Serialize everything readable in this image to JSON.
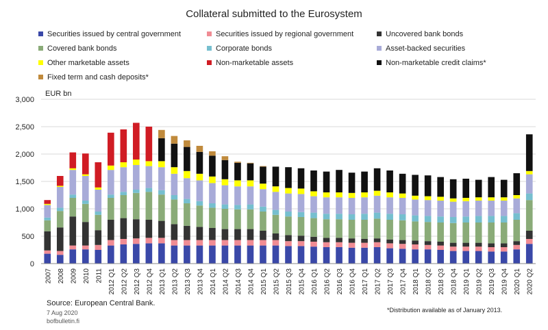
{
  "chart_data": {
    "type": "bar",
    "stacked": true,
    "title": "Collateral submitted to the Eurosystem",
    "ylabel": "EUR bn",
    "ylim": [
      0,
      3000
    ],
    "yticks": [
      "0",
      "500",
      "1,000",
      "1,500",
      "2,000",
      "2,500",
      "3,000"
    ],
    "categories": [
      "2007",
      "2008",
      "2009",
      "2010",
      "2011",
      "2012 Q1",
      "2012 Q2",
      "2012 Q3",
      "2012 Q4",
      "2013 Q1",
      "2013 Q2",
      "2013 Q3",
      "2013 Q4",
      "2014 Q1",
      "2014 Q2",
      "2014 Q3",
      "2014 Q4",
      "2015 Q1",
      "2015 Q2",
      "2015 Q3",
      "2015 Q4",
      "2016 Q1",
      "2016 Q2",
      "2016 Q3",
      "2016 Q4",
      "2017 Q1",
      "2017 Q2",
      "2017 Q3",
      "2017 Q4",
      "2018 Q1",
      "2018 Q2",
      "2018 Q3",
      "2018 Q4",
      "2019 Q1",
      "2019 Q2",
      "2019 Q3",
      "2019 Q4",
      "2020 Q1",
      "2020 Q2"
    ],
    "series": [
      {
        "name": "Securities issued by central government",
        "color": "#3a48a8",
        "values": [
          180,
          160,
          260,
          260,
          250,
          330,
          350,
          360,
          370,
          370,
          330,
          330,
          330,
          330,
          330,
          330,
          330,
          330,
          330,
          320,
          320,
          310,
          300,
          300,
          290,
          290,
          300,
          280,
          270,
          260,
          260,
          250,
          230,
          230,
          230,
          220,
          220,
          260,
          360
        ]
      },
      {
        "name": "Securities issued by regional government",
        "color": "#f08c94",
        "values": [
          60,
          70,
          70,
          70,
          90,
          100,
          100,
          100,
          100,
          100,
          100,
          100,
          100,
          100,
          100,
          100,
          100,
          100,
          100,
          90,
          90,
          90,
          90,
          90,
          90,
          90,
          90,
          90,
          90,
          90,
          80,
          80,
          80,
          80,
          80,
          80,
          80,
          80,
          90
        ]
      },
      {
        "name": "Uncovered bank bonds",
        "color": "#333333",
        "values": [
          350,
          430,
          530,
          430,
          270,
          370,
          380,
          350,
          330,
          310,
          290,
          260,
          240,
          220,
          200,
          200,
          200,
          170,
          120,
          110,
          100,
          90,
          80,
          80,
          80,
          70,
          70,
          70,
          70,
          70,
          70,
          70,
          70,
          70,
          70,
          70,
          70,
          70,
          150
        ]
      },
      {
        "name": "Covered bank bonds",
        "color": "#8aab78",
        "values": [
          200,
          300,
          340,
          330,
          280,
          400,
          420,
          480,
          510,
          480,
          450,
          410,
          390,
          370,
          370,
          360,
          360,
          350,
          340,
          340,
          340,
          340,
          340,
          340,
          340,
          350,
          360,
          360,
          360,
          350,
          350,
          350,
          360,
          370,
          370,
          380,
          380,
          390,
          560
        ]
      },
      {
        "name": "Corporate bonds",
        "color": "#76bfcf",
        "values": [
          50,
          60,
          60,
          60,
          60,
          60,
          60,
          60,
          70,
          80,
          80,
          80,
          80,
          80,
          80,
          80,
          90,
          90,
          90,
          90,
          90,
          100,
          100,
          100,
          100,
          110,
          110,
          110,
          110,
          110,
          110,
          110,
          110,
          110,
          120,
          120,
          120,
          120,
          120
        ]
      },
      {
        "name": "Asset-backed securities",
        "color": "#a8abd8",
        "values": [
          230,
          380,
          450,
          450,
          400,
          450,
          450,
          450,
          400,
          420,
          390,
          380,
          380,
          370,
          350,
          340,
          330,
          320,
          330,
          330,
          330,
          300,
          300,
          300,
          300,
          300,
          310,
          300,
          300,
          290,
          290,
          290,
          280,
          280,
          280,
          280,
          280,
          270,
          350
        ]
      },
      {
        "name": "Other marketable assets",
        "color": "#ffff00",
        "values": [
          20,
          20,
          30,
          30,
          40,
          80,
          90,
          100,
          90,
          110,
          120,
          130,
          120,
          120,
          110,
          110,
          110,
          100,
          100,
          100,
          100,
          90,
          90,
          90,
          90,
          90,
          90,
          90,
          80,
          70,
          70,
          70,
          60,
          60,
          60,
          60,
          60,
          60,
          60
        ]
      },
      {
        "name": "Non-marketable assets",
        "color": "#d01c24",
        "values": [
          70,
          180,
          290,
          380,
          460,
          600,
          600,
          670,
          630,
          0,
          0,
          0,
          0,
          0,
          0,
          0,
          0,
          0,
          0,
          0,
          0,
          0,
          0,
          0,
          0,
          0,
          0,
          0,
          0,
          0,
          0,
          0,
          0,
          0,
          0,
          0,
          0,
          0,
          0
        ]
      },
      {
        "name": "Non-marketable credit claims*",
        "color": "#111111",
        "values": [
          0,
          0,
          0,
          0,
          0,
          0,
          0,
          0,
          0,
          420,
          430,
          440,
          400,
          380,
          350,
          320,
          310,
          310,
          360,
          380,
          370,
          380,
          380,
          410,
          370,
          380,
          410,
          400,
          360,
          380,
          380,
          360,
          350,
          350,
          320,
          370,
          320,
          400,
          670
        ]
      },
      {
        "name": "Fixed term and cash deposits*",
        "color": "#c08a3c",
        "values": [
          0,
          0,
          0,
          0,
          0,
          0,
          0,
          0,
          0,
          150,
          140,
          120,
          110,
          80,
          70,
          20,
          10,
          10,
          0,
          0,
          0,
          0,
          0,
          0,
          0,
          0,
          0,
          0,
          0,
          0,
          0,
          0,
          0,
          0,
          0,
          0,
          0,
          0,
          0
        ]
      }
    ]
  },
  "footer": {
    "source": "Source: European Central Bank.",
    "date": "7 Aug 2020",
    "site": "bofbulletin.fi",
    "note": "*Distribution available as of January 2013."
  }
}
